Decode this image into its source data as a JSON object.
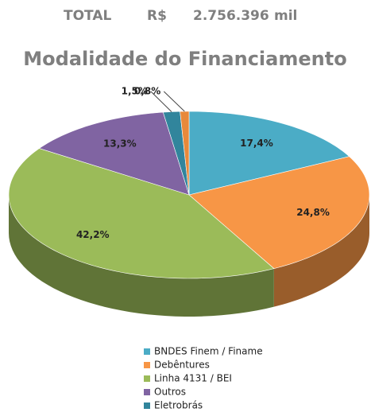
{
  "chart_data": {
    "type": "pie3d",
    "header": [
      "TOTAL",
      "R$",
      "2.756.396",
      "mil"
    ],
    "title": "Modalidade do Financiamento",
    "categories": [
      "BNDES Finem / Finame",
      "Debêntures",
      "Linha 4131 / BEI",
      "Outros",
      "Eletrobrás",
      null
    ],
    "values": [
      17.4,
      24.8,
      42.2,
      13.3,
      1.5,
      0.8
    ],
    "value_labels": [
      "17,4%",
      "24,8%",
      "42,2%",
      "13,3%",
      "1,5%",
      "0,8%"
    ],
    "colors": [
      "#4bacc6",
      "#f79646",
      "#9bbb59",
      "#8064a2",
      "#31859c",
      "#e8893a"
    ]
  }
}
